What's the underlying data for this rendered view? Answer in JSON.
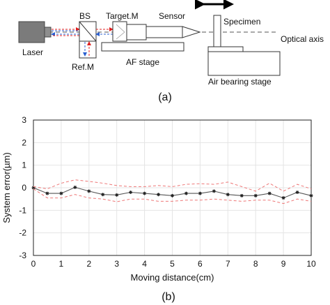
{
  "setup": {
    "caption": "(a)",
    "labels": {
      "laser": "Laser",
      "bs": "BS",
      "target": "Target.M",
      "sensor": "Sensor",
      "specimen": "Specimen",
      "ref": "Ref.M",
      "af_stage": "AF stage",
      "optical_axis": "Optical axis",
      "air_stage": "Air bearing stage"
    }
  },
  "plot": {
    "caption": "(b)"
  },
  "chart_data": {
    "type": "line",
    "xlabel": "Moving distance(cm)",
    "ylabel": "System error(µm)",
    "xlim": [
      0,
      10
    ],
    "ylim": [
      -3,
      3
    ],
    "xticks": [
      0,
      1,
      2,
      3,
      4,
      5,
      6,
      7,
      8,
      9,
      10
    ],
    "yticks": [
      3,
      2,
      1,
      0,
      -1,
      -2,
      -3
    ],
    "grid": true,
    "series": [
      {
        "role": "mean",
        "color": "#555555",
        "x": [
          0,
          0.5,
          1,
          1.5,
          2,
          2.5,
          3,
          3.5,
          4,
          4.5,
          5,
          5.5,
          6,
          6.5,
          7,
          7.5,
          8,
          8.5,
          9,
          9.5,
          10
        ],
        "y": [
          0,
          -0.25,
          -0.25,
          0.02,
          -0.15,
          -0.3,
          -0.32,
          -0.2,
          -0.25,
          -0.3,
          -0.35,
          -0.25,
          -0.25,
          -0.15,
          -0.3,
          -0.35,
          -0.35,
          -0.25,
          -0.45,
          -0.2,
          -0.35
        ]
      },
      {
        "role": "upper-bound",
        "color": "#ee7777",
        "x": [
          0,
          0.5,
          1,
          1.5,
          2,
          2.5,
          3,
          3.5,
          4,
          4.5,
          5,
          5.5,
          6,
          6.5,
          7,
          7.5,
          8,
          8.5,
          9,
          9.5,
          10
        ],
        "y": [
          0.05,
          -0.05,
          0.2,
          0.35,
          0.28,
          0.2,
          0.1,
          0.05,
          0.05,
          0.1,
          0.05,
          0.15,
          0.18,
          0.15,
          0.25,
          0.05,
          -0.15,
          0.2,
          -0.15,
          0.15,
          -0.05
        ]
      },
      {
        "role": "lower-bound",
        "color": "#ee7777",
        "x": [
          0,
          0.5,
          1,
          1.5,
          2,
          2.5,
          3,
          3.5,
          4,
          4.5,
          5,
          5.5,
          6,
          6.5,
          7,
          7.5,
          8,
          8.5,
          9,
          9.5,
          10
        ],
        "y": [
          -0.05,
          -0.45,
          -0.45,
          -0.3,
          -0.45,
          -0.5,
          -0.62,
          -0.5,
          -0.5,
          -0.6,
          -0.6,
          -0.55,
          -0.55,
          -0.5,
          -0.55,
          -0.6,
          -0.55,
          -0.55,
          -0.7,
          -0.5,
          -0.6
        ]
      }
    ]
  }
}
